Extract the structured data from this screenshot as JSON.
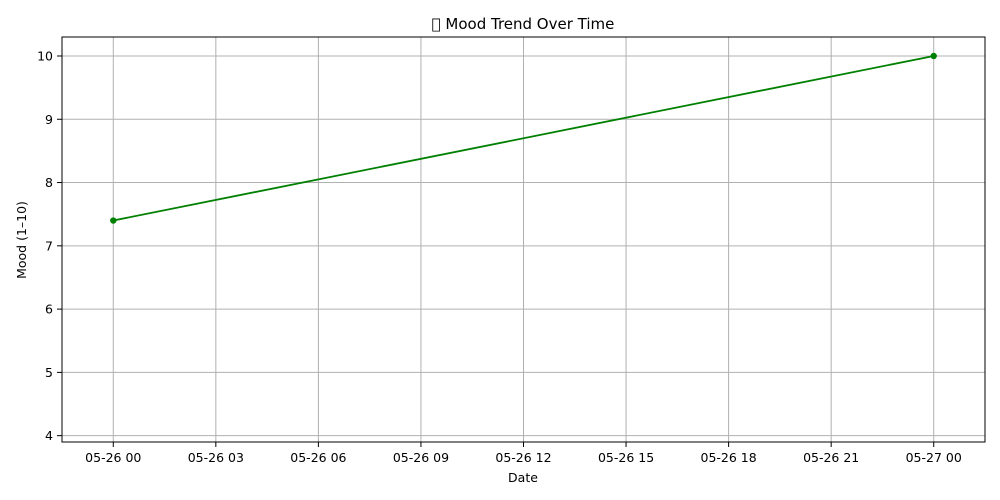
{
  "chart_data": {
    "type": "line",
    "title": "􏰀 Mood Trend Over Time",
    "xlabel": "Date",
    "ylabel": "Mood (1–10)",
    "x_ticks": [
      "05-26 00",
      "05-26 03",
      "05-26 06",
      "05-26 09",
      "05-26 12",
      "05-26 15",
      "05-26 18",
      "05-26 21",
      "05-27 00"
    ],
    "y_ticks": [
      "4",
      "5",
      "6",
      "7",
      "8",
      "9",
      "10"
    ],
    "x_range_hours": [
      -1.5,
      25.5
    ],
    "ylim": [
      3.9,
      10.3
    ],
    "grid": true,
    "series": [
      {
        "color": "#008000",
        "marker": "circle",
        "points": [
          {
            "x": "2024-05-26 00:00",
            "y": 7.4
          },
          {
            "x": "2024-05-27 00:00",
            "y": 10
          }
        ]
      }
    ]
  }
}
